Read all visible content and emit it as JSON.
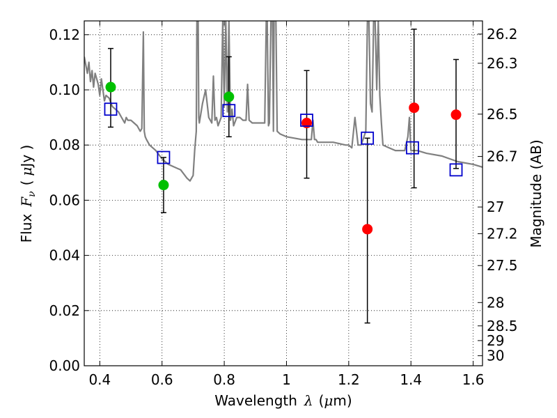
{
  "chart_data": {
    "type": "scatter",
    "xlabel_text": "Wavelength",
    "xlabel_symbol": "λ",
    "xlabel_unit_open": "(",
    "xlabel_unit_mu": "μ",
    "xlabel_unit_close": "m)",
    "ylabel_text": "Flux",
    "ylabel_symbol": "F",
    "ylabel_subscript": "ν",
    "ylabel_unit_open": "(",
    "ylabel_unit_mu": "μ",
    "ylabel_unit_close": "Jy )",
    "y2label": "Magnitude (AB)",
    "xlim": [
      0.35,
      1.63
    ],
    "ylim": [
      0.0,
      0.125
    ],
    "grid": true,
    "x_ticks": [
      {
        "v": 0.4,
        "label": "0.4"
      },
      {
        "v": 0.6,
        "label": "0.6"
      },
      {
        "v": 0.8,
        "label": "0.8"
      },
      {
        "v": 1.0,
        "label": "1"
      },
      {
        "v": 1.2,
        "label": "1.2"
      },
      {
        "v": 1.4,
        "label": "1.4"
      },
      {
        "v": 1.6,
        "label": "1.6"
      }
    ],
    "y_ticks": [
      {
        "v": 0.0,
        "label": "0.00"
      },
      {
        "v": 0.02,
        "label": "0.02"
      },
      {
        "v": 0.04,
        "label": "0.04"
      },
      {
        "v": 0.06,
        "label": "0.06"
      },
      {
        "v": 0.08,
        "label": "0.08"
      },
      {
        "v": 0.1,
        "label": "0.10"
      },
      {
        "v": 0.12,
        "label": "0.12"
      }
    ],
    "mag_ticks": [
      {
        "mag": 26.2,
        "label": "26.2"
      },
      {
        "mag": 26.3,
        "label": "26.3"
      },
      {
        "mag": 26.5,
        "label": "26.5"
      },
      {
        "mag": 26.7,
        "label": "26.7"
      },
      {
        "mag": 27.0,
        "label": "27"
      },
      {
        "mag": 27.2,
        "label": "27.2"
      },
      {
        "mag": 27.5,
        "label": "27.5"
      },
      {
        "mag": 28.0,
        "label": "28"
      },
      {
        "mag": 28.5,
        "label": "28.5"
      },
      {
        "mag": 29.0,
        "label": "29"
      },
      {
        "mag": 30.0,
        "label": "30"
      }
    ],
    "model_spectrum": {
      "color": "#808080",
      "x": [
        0.35,
        0.36,
        0.365,
        0.37,
        0.375,
        0.38,
        0.385,
        0.39,
        0.395,
        0.4,
        0.405,
        0.41,
        0.415,
        0.42,
        0.43,
        0.44,
        0.45,
        0.46,
        0.47,
        0.48,
        0.485,
        0.49,
        0.5,
        0.51,
        0.52,
        0.53,
        0.535,
        0.54,
        0.543,
        0.546,
        0.55,
        0.56,
        0.58,
        0.6,
        0.62,
        0.64,
        0.66,
        0.68,
        0.69,
        0.7,
        0.705,
        0.71,
        0.712,
        0.714,
        0.716,
        0.718,
        0.72,
        0.73,
        0.74,
        0.75,
        0.76,
        0.765,
        0.77,
        0.775,
        0.78,
        0.79,
        0.795,
        0.8,
        0.805,
        0.81,
        0.815,
        0.82,
        0.825,
        0.83,
        0.84,
        0.85,
        0.86,
        0.87,
        0.875,
        0.88,
        0.89,
        0.9,
        0.92,
        0.93,
        0.935,
        0.938,
        0.942,
        0.945,
        0.95,
        0.955,
        0.958,
        0.96,
        0.963,
        0.966,
        0.97,
        0.98,
        1.0,
        1.05,
        1.08,
        1.085,
        1.09,
        1.095,
        1.1,
        1.15,
        1.19,
        1.2,
        1.21,
        1.22,
        1.23,
        1.24,
        1.255,
        1.26,
        1.265,
        1.27,
        1.275,
        1.28,
        1.285,
        1.29,
        1.295,
        1.3,
        1.305,
        1.31,
        1.33,
        1.35,
        1.38,
        1.39,
        1.395,
        1.4,
        1.42,
        1.45,
        1.5,
        1.55,
        1.6,
        1.63
      ],
      "y": [
        0.112,
        0.106,
        0.11,
        0.103,
        0.107,
        0.101,
        0.106,
        0.104,
        0.102,
        0.098,
        0.104,
        0.1,
        0.096,
        0.098,
        0.097,
        0.094,
        0.093,
        0.092,
        0.09,
        0.088,
        0.09,
        0.089,
        0.089,
        0.088,
        0.087,
        0.085,
        0.086,
        0.121,
        0.085,
        0.083,
        0.082,
        0.08,
        0.078,
        0.075,
        0.073,
        0.072,
        0.071,
        0.068,
        0.067,
        0.069,
        0.078,
        0.085,
        0.125,
        0.125,
        0.125,
        0.09,
        0.088,
        0.095,
        0.1,
        0.09,
        0.088,
        0.105,
        0.089,
        0.09,
        0.087,
        0.09,
        0.125,
        0.094,
        0.125,
        0.092,
        0.125,
        0.089,
        0.093,
        0.087,
        0.09,
        0.09,
        0.089,
        0.089,
        0.102,
        0.089,
        0.088,
        0.088,
        0.088,
        0.088,
        0.125,
        0.125,
        0.087,
        0.088,
        0.125,
        0.125,
        0.085,
        0.125,
        0.125,
        0.125,
        0.085,
        0.084,
        0.083,
        0.082,
        0.082,
        0.089,
        0.082,
        0.082,
        0.081,
        0.081,
        0.08,
        0.08,
        0.079,
        0.09,
        0.08,
        0.08,
        0.085,
        0.125,
        0.125,
        0.095,
        0.092,
        0.125,
        0.125,
        0.1,
        0.125,
        0.098,
        0.088,
        0.08,
        0.079,
        0.078,
        0.078,
        0.083,
        0.09,
        0.078,
        0.078,
        0.077,
        0.076,
        0.074,
        0.073,
        0.072
      ]
    },
    "series": [
      {
        "marker": "circle",
        "color": "#00c000",
        "points": [
          {
            "x": 0.435,
            "y": 0.101,
            "ylo": 0.0865,
            "yhi": 0.115
          },
          {
            "x": 0.605,
            "y": 0.0655,
            "ylo": 0.0555,
            "yhi": 0.0755
          },
          {
            "x": 0.815,
            "y": 0.0975,
            "ylo": 0.083,
            "yhi": 0.112
          }
        ]
      },
      {
        "marker": "circle",
        "color": "#ff0000",
        "points": [
          {
            "x": 1.065,
            "y": 0.088,
            "ylo": 0.068,
            "yhi": 0.107
          },
          {
            "x": 1.26,
            "y": 0.0495,
            "ylo": 0.0155,
            "yhi": 0.0825
          },
          {
            "x": 1.41,
            "y": 0.0935,
            "ylo": 0.0645,
            "yhi": 0.122
          },
          {
            "x": 1.545,
            "y": 0.091,
            "ylo": 0.0715,
            "yhi": 0.111
          }
        ]
      },
      {
        "marker": "square",
        "color": "#0000cc",
        "points": [
          {
            "x": 0.435,
            "y": 0.093
          },
          {
            "x": 0.605,
            "y": 0.0755
          },
          {
            "x": 0.815,
            "y": 0.0925
          },
          {
            "x": 1.065,
            "y": 0.089
          },
          {
            "x": 1.26,
            "y": 0.0825
          },
          {
            "x": 1.405,
            "y": 0.079
          },
          {
            "x": 1.545,
            "y": 0.071
          }
        ]
      }
    ]
  }
}
